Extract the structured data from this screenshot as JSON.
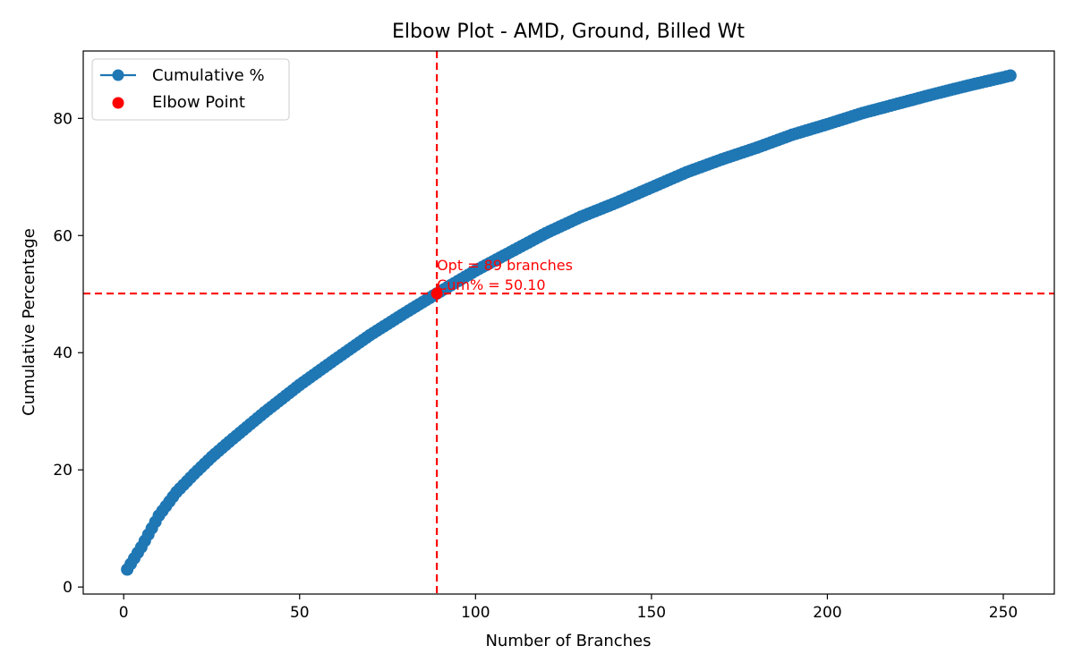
{
  "chart_data": {
    "type": "line",
    "title": "Elbow Plot - AMD, Ground, Billed Wt",
    "xlabel": "Number of Branches",
    "ylabel": "Cumulative Percentage",
    "xlim": [
      -11.5,
      264.5
    ],
    "ylim": [
      -1.2,
      91.5
    ],
    "xticks": [
      0,
      50,
      100,
      150,
      200,
      250
    ],
    "yticks": [
      0,
      20,
      40,
      60,
      80
    ],
    "grid": false,
    "legend_position": "top-left",
    "series": [
      {
        "name": "Cumulative %",
        "color": "#1f77b4",
        "marker": "circle",
        "x_start": 1,
        "x_end": 252,
        "anchors": [
          [
            1,
            3.0
          ],
          [
            5,
            6.8
          ],
          [
            10,
            12.2
          ],
          [
            15,
            16.2
          ],
          [
            20,
            19.3
          ],
          [
            25,
            22.2
          ],
          [
            30,
            24.8
          ],
          [
            40,
            29.8
          ],
          [
            50,
            34.5
          ],
          [
            60,
            38.8
          ],
          [
            70,
            43.0
          ],
          [
            80,
            46.8
          ],
          [
            89,
            50.1
          ],
          [
            100,
            54.0
          ],
          [
            110,
            57.2
          ],
          [
            120,
            60.4
          ],
          [
            130,
            63.2
          ],
          [
            140,
            65.6
          ],
          [
            150,
            68.2
          ],
          [
            160,
            70.8
          ],
          [
            170,
            73.0
          ],
          [
            180,
            75.0
          ],
          [
            190,
            77.2
          ],
          [
            200,
            79.0
          ],
          [
            210,
            80.9
          ],
          [
            220,
            82.5
          ],
          [
            230,
            84.1
          ],
          [
            240,
            85.6
          ],
          [
            250,
            87.0
          ],
          [
            252,
            87.3
          ]
        ]
      }
    ],
    "elbow_point": {
      "name": "Elbow Point",
      "color": "#ff0000",
      "x": 89,
      "y": 50.1
    },
    "reference_lines": {
      "color": "#ff0000",
      "vertical_x": 89,
      "horizontal_y": 50.1
    },
    "annotation": {
      "line1": "Opt = 89 branches",
      "line2": "Cum% = 50.10",
      "color": "#ff0000"
    }
  }
}
